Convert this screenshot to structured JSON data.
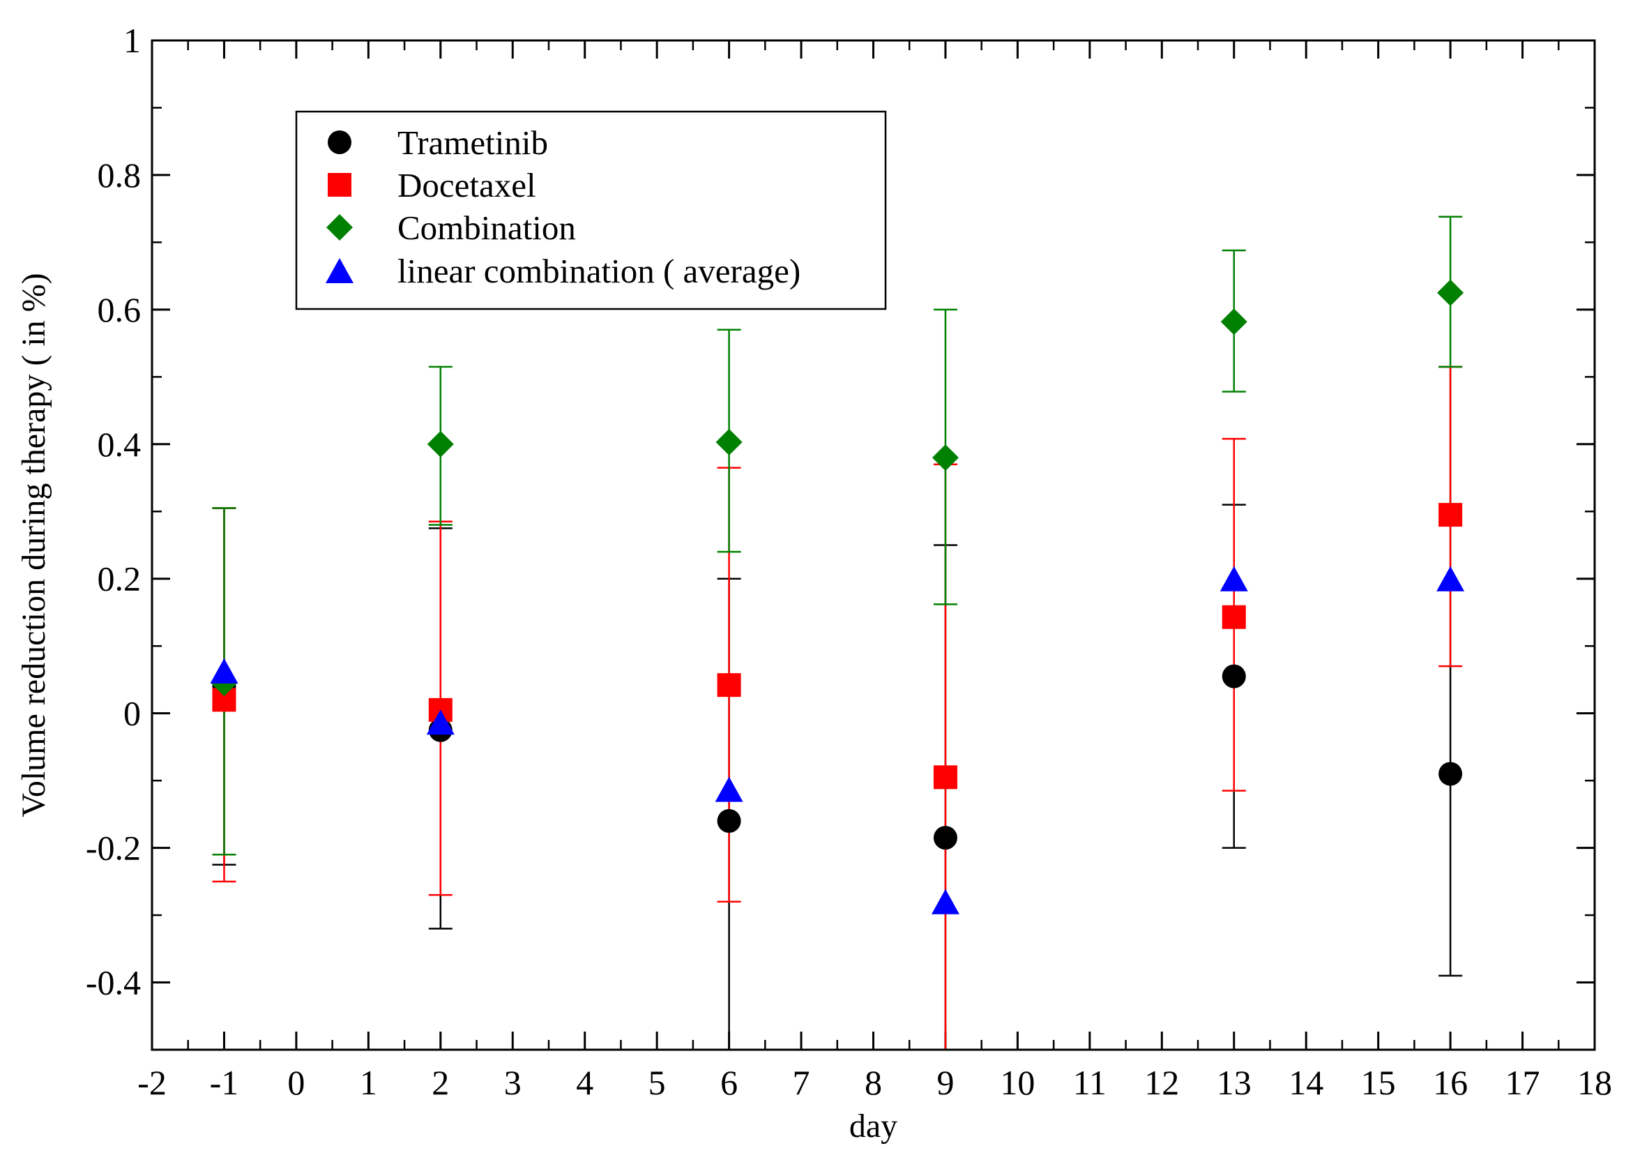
{
  "chart_data": {
    "type": "scatter",
    "xlabel": "day",
    "ylabel": "Volume reduction during therapy ( in %)",
    "xlim": [
      -2,
      18
    ],
    "ylim": [
      -0.5,
      1
    ],
    "xticks": [
      -2,
      -1,
      0,
      1,
      2,
      3,
      4,
      5,
      6,
      7,
      8,
      9,
      10,
      11,
      12,
      13,
      14,
      15,
      16,
      17,
      18
    ],
    "yticks": [
      -0.4,
      -0.2,
      0,
      0.2,
      0.4,
      0.6,
      0.8,
      1
    ],
    "xtick_labels": [
      "-2",
      "-1",
      "0",
      "1",
      "2",
      "3",
      "4",
      "5",
      "6",
      "7",
      "8",
      "9",
      "10",
      "11",
      "12",
      "13",
      "14",
      "15",
      "16",
      "17",
      "18"
    ],
    "ytick_labels": [
      "-0.4",
      "-0.2",
      "0",
      "0.2",
      "0.4",
      "0.6",
      "0.8",
      "1"
    ],
    "legend_position": "top-left",
    "grid": false,
    "series": [
      {
        "name": "Trametinib",
        "marker": "circle",
        "color": "#000000",
        "points": [
          {
            "x": -1,
            "y": 0.04,
            "low": -0.225,
            "high": 0.305
          },
          {
            "x": 2,
            "y": -0.025,
            "low": -0.32,
            "high": 0.275
          },
          {
            "x": 6,
            "y": -0.16,
            "low": -0.5,
            "high": 0.2
          },
          {
            "x": 9,
            "y": -0.185,
            "low": -0.5,
            "high": 0.25
          },
          {
            "x": 13,
            "y": 0.055,
            "low": -0.2,
            "high": 0.31
          },
          {
            "x": 16,
            "y": -0.09,
            "low": -0.39,
            "high": 0.515
          }
        ]
      },
      {
        "name": "Docetaxel",
        "marker": "square",
        "color": "#ff0000",
        "points": [
          {
            "x": -1,
            "y": 0.02,
            "low": -0.25,
            "high": 0.305
          },
          {
            "x": 2,
            "y": 0.005,
            "low": -0.27,
            "high": 0.285
          },
          {
            "x": 6,
            "y": 0.042,
            "low": -0.28,
            "high": 0.365
          },
          {
            "x": 9,
            "y": -0.095,
            "low": -0.5,
            "high": 0.37
          },
          {
            "x": 13,
            "y": 0.143,
            "low": -0.115,
            "high": 0.408
          },
          {
            "x": 16,
            "y": 0.295,
            "low": 0.07,
            "high": 0.515
          }
        ]
      },
      {
        "name": "Combination",
        "marker": "diamond",
        "color": "#008000",
        "points": [
          {
            "x": -1,
            "y": 0.045,
            "low": -0.21,
            "high": 0.305
          },
          {
            "x": 2,
            "y": 0.4,
            "low": 0.28,
            "high": 0.515
          },
          {
            "x": 6,
            "y": 0.403,
            "low": 0.24,
            "high": 0.57
          },
          {
            "x": 9,
            "y": 0.38,
            "low": 0.162,
            "high": 0.6
          },
          {
            "x": 13,
            "y": 0.582,
            "low": 0.478,
            "high": 0.688
          },
          {
            "x": 16,
            "y": 0.625,
            "low": 0.515,
            "high": 0.738
          }
        ]
      },
      {
        "name": "linear combination ( average)",
        "marker": "triangle",
        "color": "#0000ff",
        "points": [
          {
            "x": -1,
            "y": 0.063
          },
          {
            "x": 2,
            "y": -0.013
          },
          {
            "x": 6,
            "y": -0.113
          },
          {
            "x": 9,
            "y": -0.28
          },
          {
            "x": 13,
            "y": 0.2
          },
          {
            "x": 16,
            "y": 0.2
          }
        ]
      }
    ]
  }
}
